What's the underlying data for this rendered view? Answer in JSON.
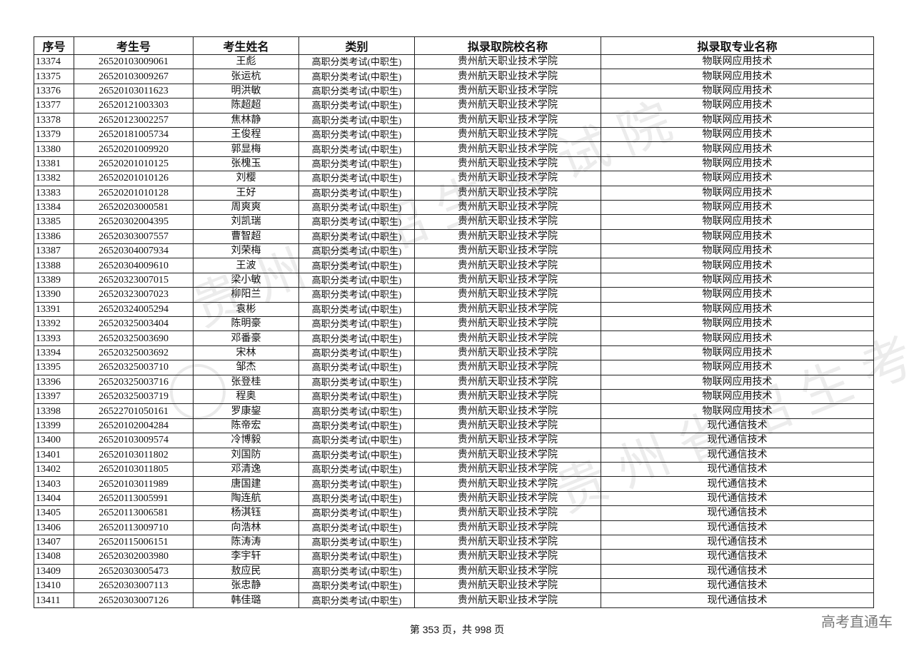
{
  "headers": [
    "序号",
    "考生号",
    "考生姓名",
    "类别",
    "拟录取院校名称",
    "拟录取专业名称"
  ],
  "rows": [
    [
      "13374",
      "26520103009061",
      "王彪",
      "高职分类考试(中职生)",
      "贵州航天职业技术学院",
      "物联网应用技术"
    ],
    [
      "13375",
      "26520103009267",
      "张运杭",
      "高职分类考试(中职生)",
      "贵州航天职业技术学院",
      "物联网应用技术"
    ],
    [
      "13376",
      "26520103011623",
      "明洪敏",
      "高职分类考试(中职生)",
      "贵州航天职业技术学院",
      "物联网应用技术"
    ],
    [
      "13377",
      "26520121003303",
      "陈超超",
      "高职分类考试(中职生)",
      "贵州航天职业技术学院",
      "物联网应用技术"
    ],
    [
      "13378",
      "26520123002257",
      "焦林静",
      "高职分类考试(中职生)",
      "贵州航天职业技术学院",
      "物联网应用技术"
    ],
    [
      "13379",
      "26520181005734",
      "王俊程",
      "高职分类考试(中职生)",
      "贵州航天职业技术学院",
      "物联网应用技术"
    ],
    [
      "13380",
      "26520201009920",
      "郭显梅",
      "高职分类考试(中职生)",
      "贵州航天职业技术学院",
      "物联网应用技术"
    ],
    [
      "13381",
      "26520201010125",
      "张槐玉",
      "高职分类考试(中职生)",
      "贵州航天职业技术学院",
      "物联网应用技术"
    ],
    [
      "13382",
      "26520201010126",
      "刘樱",
      "高职分类考试(中职生)",
      "贵州航天职业技术学院",
      "物联网应用技术"
    ],
    [
      "13383",
      "26520201010128",
      "王好",
      "高职分类考试(中职生)",
      "贵州航天职业技术学院",
      "物联网应用技术"
    ],
    [
      "13384",
      "26520203000581",
      "周爽爽",
      "高职分类考试(中职生)",
      "贵州航天职业技术学院",
      "物联网应用技术"
    ],
    [
      "13385",
      "26520302004395",
      "刘凯瑞",
      "高职分类考试(中职生)",
      "贵州航天职业技术学院",
      "物联网应用技术"
    ],
    [
      "13386",
      "26520303007557",
      "曹智超",
      "高职分类考试(中职生)",
      "贵州航天职业技术学院",
      "物联网应用技术"
    ],
    [
      "13387",
      "26520304007934",
      "刘荣梅",
      "高职分类考试(中职生)",
      "贵州航天职业技术学院",
      "物联网应用技术"
    ],
    [
      "13388",
      "26520304009610",
      "王波",
      "高职分类考试(中职生)",
      "贵州航天职业技术学院",
      "物联网应用技术"
    ],
    [
      "13389",
      "26520323007015",
      "梁小敏",
      "高职分类考试(中职生)",
      "贵州航天职业技术学院",
      "物联网应用技术"
    ],
    [
      "13390",
      "26520323007023",
      "柳阳兰",
      "高职分类考试(中职生)",
      "贵州航天职业技术学院",
      "物联网应用技术"
    ],
    [
      "13391",
      "26520324005294",
      "袁彬",
      "高职分类考试(中职生)",
      "贵州航天职业技术学院",
      "物联网应用技术"
    ],
    [
      "13392",
      "26520325003404",
      "陈明豪",
      "高职分类考试(中职生)",
      "贵州航天职业技术学院",
      "物联网应用技术"
    ],
    [
      "13393",
      "26520325003690",
      "邓番豪",
      "高职分类考试(中职生)",
      "贵州航天职业技术学院",
      "物联网应用技术"
    ],
    [
      "13394",
      "26520325003692",
      "宋林",
      "高职分类考试(中职生)",
      "贵州航天职业技术学院",
      "物联网应用技术"
    ],
    [
      "13395",
      "26520325003710",
      "邹杰",
      "高职分类考试(中职生)",
      "贵州航天职业技术学院",
      "物联网应用技术"
    ],
    [
      "13396",
      "26520325003716",
      "张登桂",
      "高职分类考试(中职生)",
      "贵州航天职业技术学院",
      "物联网应用技术"
    ],
    [
      "13397",
      "26520325003719",
      "程奥",
      "高职分类考试(中职生)",
      "贵州航天职业技术学院",
      "物联网应用技术"
    ],
    [
      "13398",
      "26522701050161",
      "罗康鋆",
      "高职分类考试(中职生)",
      "贵州航天职业技术学院",
      "物联网应用技术"
    ],
    [
      "13399",
      "26520102004284",
      "陈帝宏",
      "高职分类考试(中职生)",
      "贵州航天职业技术学院",
      "现代通信技术"
    ],
    [
      "13400",
      "26520103009574",
      "冷博毅",
      "高职分类考试(中职生)",
      "贵州航天职业技术学院",
      "现代通信技术"
    ],
    [
      "13401",
      "26520103011802",
      "刘国防",
      "高职分类考试(中职生)",
      "贵州航天职业技术学院",
      "现代通信技术"
    ],
    [
      "13402",
      "26520103011805",
      "邓清逸",
      "高职分类考试(中职生)",
      "贵州航天职业技术学院",
      "现代通信技术"
    ],
    [
      "13403",
      "26520103011989",
      "唐国建",
      "高职分类考试(中职生)",
      "贵州航天职业技术学院",
      "现代通信技术"
    ],
    [
      "13404",
      "26520113005991",
      "陶连航",
      "高职分类考试(中职生)",
      "贵州航天职业技术学院",
      "现代通信技术"
    ],
    [
      "13405",
      "26520113006581",
      "杨淇钰",
      "高职分类考试(中职生)",
      "贵州航天职业技术学院",
      "现代通信技术"
    ],
    [
      "13406",
      "26520113009710",
      "向浩林",
      "高职分类考试(中职生)",
      "贵州航天职业技术学院",
      "现代通信技术"
    ],
    [
      "13407",
      "26520115006151",
      "陈涛涛",
      "高职分类考试(中职生)",
      "贵州航天职业技术学院",
      "现代通信技术"
    ],
    [
      "13408",
      "26520302003980",
      "李宇轩",
      "高职分类考试(中职生)",
      "贵州航天职业技术学院",
      "现代通信技术"
    ],
    [
      "13409",
      "26520303005473",
      "敖应民",
      "高职分类考试(中职生)",
      "贵州航天职业技术学院",
      "现代通信技术"
    ],
    [
      "13410",
      "26520303007113",
      "张忠静",
      "高职分类考试(中职生)",
      "贵州航天职业技术学院",
      "现代通信技术"
    ],
    [
      "13411",
      "26520303007126",
      "韩佳璐",
      "高职分类考试(中职生)",
      "贵州航天职业技术学院",
      "现代通信技术"
    ]
  ],
  "footer": {
    "page_info": "第 353 页，共 998 页"
  },
  "brand": "高考直通车",
  "watermark": "贵州省招生考试院"
}
